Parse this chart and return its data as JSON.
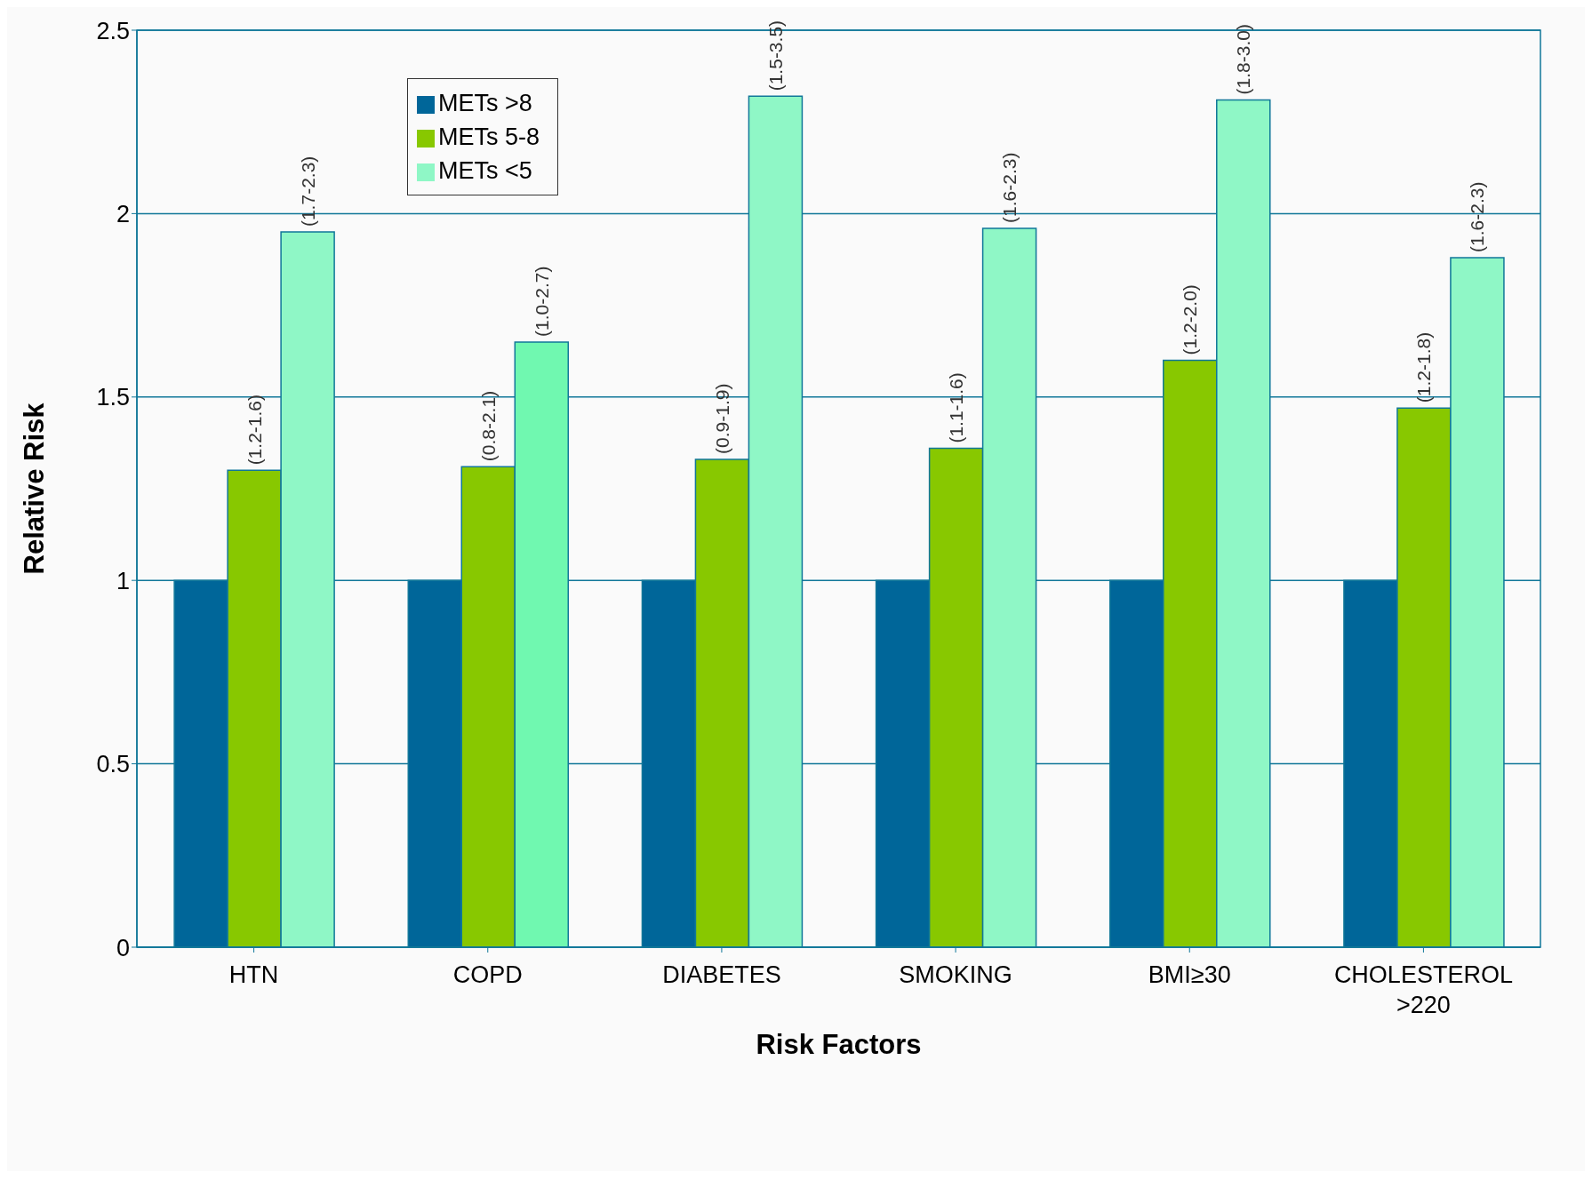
{
  "chart_data": {
    "type": "bar",
    "xlabel": "Risk Factors",
    "ylabel": "Relative Risk",
    "categories": [
      "HTN",
      "COPD",
      "DIABETES",
      "SMOKING",
      "BMI≥30",
      "CHOLESTEROL >220"
    ],
    "series": [
      {
        "name": "METs >8",
        "color": "#006699",
        "values": [
          1,
          1,
          1,
          1,
          1,
          1
        ]
      },
      {
        "name": "METs 5-8",
        "color": "#88c800",
        "values": [
          1.3,
          1.31,
          1.33,
          1.36,
          1.6,
          1.47
        ],
        "value_labels": [
          "(1.2-1.6)",
          "(0.8-2.1)",
          "(0.9-1.9)",
          "(1.1-1.6)",
          "(1.2-2.0)",
          "(1.2-1.8)"
        ]
      },
      {
        "name": "METs <5",
        "color": "#8ff7c6",
        "colors": [
          "#8ff7c6",
          "#70f8b0",
          "#8ff7c6",
          "#8ff7c6",
          "#8ff7c6",
          "#8ff7c6"
        ],
        "values": [
          1.95,
          1.65,
          2.32,
          1.96,
          2.31,
          1.88
        ],
        "value_labels": [
          "(1.7-2.3)",
          "(1.0-2.7)",
          "(1.5-3.5)",
          "(1.6-2.3)",
          "(1.8-3.0)",
          "(1.6-2.3)"
        ]
      }
    ],
    "ylim": [
      0,
      2.5
    ],
    "yticks": [
      0,
      0.5,
      1,
      1.5,
      2,
      2.5
    ],
    "grid": "y",
    "legend": "top left"
  }
}
